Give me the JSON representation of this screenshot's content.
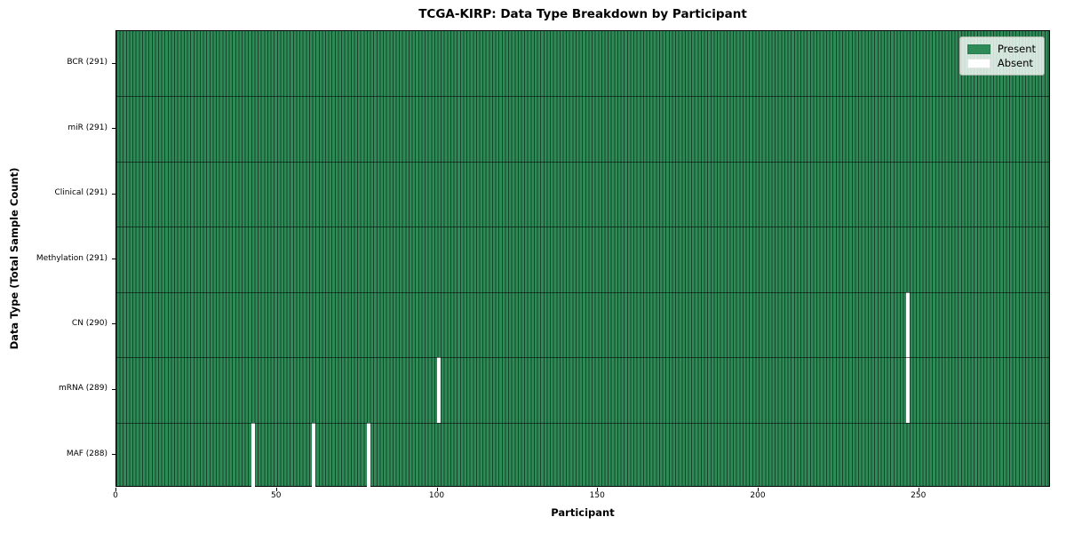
{
  "chart_data": {
    "type": "heatmap",
    "title": "TCGA-KIRP: Data Type Breakdown by Participant",
    "xlabel": "Participant",
    "ylabel": "Data Type (Total Sample Count)",
    "x_ticks": [
      0,
      50,
      100,
      150,
      200,
      250
    ],
    "x_range": [
      0,
      291
    ],
    "total_participants": 291,
    "grid": false,
    "rows": [
      {
        "label": "BCR (291)",
        "data_type": "BCR",
        "sample_count": 291,
        "absent_participants": []
      },
      {
        "label": "miR (291)",
        "data_type": "miR",
        "sample_count": 291,
        "absent_participants": []
      },
      {
        "label": "Clinical (291)",
        "data_type": "Clinical",
        "sample_count": 291,
        "absent_participants": []
      },
      {
        "label": "Methylation (291)",
        "data_type": "Methylation",
        "sample_count": 291,
        "absent_participants": []
      },
      {
        "label": "CN (290)",
        "data_type": "CN",
        "sample_count": 290,
        "absent_participants": [
          246
        ]
      },
      {
        "label": "mRNA (289)",
        "data_type": "mRNA",
        "sample_count": 289,
        "absent_participants": [
          100,
          246
        ]
      },
      {
        "label": "MAF (288)",
        "data_type": "MAF",
        "sample_count": 288,
        "absent_participants": [
          42,
          61,
          78
        ]
      }
    ],
    "legend": {
      "position": "upper right",
      "items": [
        {
          "label": "Present",
          "color": "#2e8b57"
        },
        {
          "label": "Absent",
          "color": "#ffffff"
        }
      ]
    },
    "colors": {
      "present": "#2e8b57",
      "absent": "#ffffff"
    }
  }
}
